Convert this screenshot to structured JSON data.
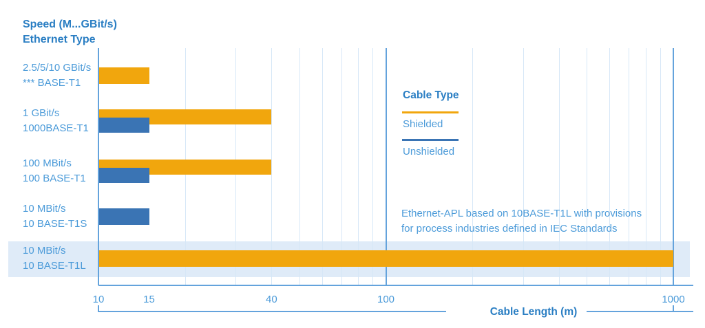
{
  "header": {
    "lines": [
      "Speed (M...GBit/s)",
      "Ethernet Type"
    ]
  },
  "legend": {
    "title": "Cable Type",
    "items": [
      {
        "label": "Shielded",
        "color": "#F1A60D"
      },
      {
        "label": "Unshielded",
        "color": "#3A74B4"
      }
    ]
  },
  "annotation": {
    "lines": [
      "Ethernet-APL based on 10BASE-T1L with provisions",
      "for process industries defined in IEC Standards"
    ]
  },
  "x_axis": {
    "label": "Cable Length (m)"
  },
  "colors": {
    "header_blue": "#2A7EC3",
    "text_blue": "#4C9BD9",
    "shielded_orange": "#F1A60D",
    "unshielded_blue": "#3A74B4",
    "highlight_band": "#DFEBF8",
    "grid_light": "#D6E7F7",
    "grid_strong": "#64A3DC"
  },
  "chart_data": {
    "type": "bar",
    "orientation": "horizontal",
    "x_scale": "log",
    "xlabel": "Cable Length (m)",
    "x_ticks": [
      10,
      15,
      40,
      100,
      1000
    ],
    "x_range": [
      10,
      1000
    ],
    "grid_minor": [
      20,
      30,
      40,
      50,
      60,
      70,
      80,
      90,
      200,
      300,
      400,
      500,
      600,
      700,
      800,
      900
    ],
    "grid_major": [
      10,
      100,
      1000
    ],
    "series_names": [
      "Shielded",
      "Unshielded"
    ],
    "categories": [
      {
        "speed": "2.5/5/10 GBit/s",
        "ethernet_type": "*** BASE-T1",
        "shielded_m": 15,
        "unshielded_m": null,
        "highlighted": false
      },
      {
        "speed": "1 GBit/s",
        "ethernet_type": "1000BASE-T1",
        "shielded_m": 40,
        "unshielded_m": 15,
        "highlighted": false
      },
      {
        "speed": "100 MBit/s",
        "ethernet_type": "100 BASE-T1",
        "shielded_m": 40,
        "unshielded_m": 15,
        "highlighted": false
      },
      {
        "speed": "10 MBit/s",
        "ethernet_type": "10 BASE-T1S",
        "shielded_m": null,
        "unshielded_m": 15,
        "highlighted": false
      },
      {
        "speed": "10 MBit/s",
        "ethernet_type": "10 BASE-T1L",
        "shielded_m": 1000,
        "unshielded_m": null,
        "highlighted": true
      }
    ],
    "legend_position": "right-inside",
    "grid": "vertical-only"
  }
}
